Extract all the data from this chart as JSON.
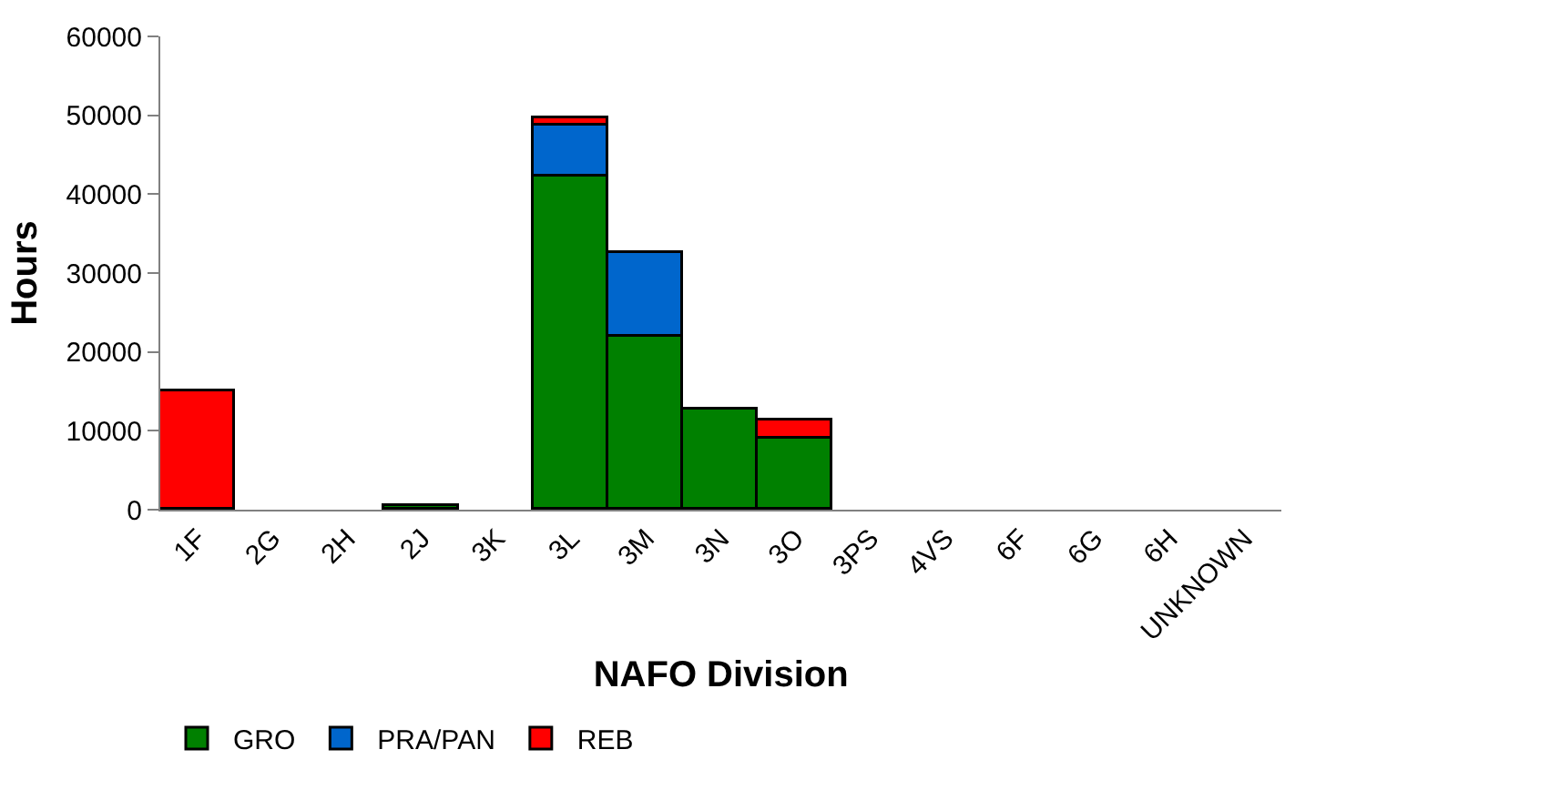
{
  "chart_data": {
    "type": "bar",
    "stacked": true,
    "xlabel": "NAFO Division",
    "ylabel": "Hours",
    "categories": [
      "1F",
      "2G",
      "2H",
      "2J",
      "3K",
      "3L",
      "3M",
      "3N",
      "3O",
      "3PS",
      "4VS",
      "6F",
      "6G",
      "6H",
      "UNKNOWN"
    ],
    "series": [
      {
        "name": "GRO",
        "color": "#008000",
        "values": [
          null,
          null,
          null,
          400,
          null,
          42200,
          22000,
          12800,
          9000,
          null,
          null,
          null,
          null,
          null,
          null
        ]
      },
      {
        "name": "PRA/PAN",
        "color": "#0066cc",
        "values": [
          null,
          null,
          null,
          null,
          null,
          6500,
          10600,
          null,
          null,
          null,
          null,
          null,
          null,
          null,
          null
        ]
      },
      {
        "name": "REB",
        "color": "#ff0000",
        "values": [
          15000,
          null,
          null,
          null,
          null,
          1000,
          null,
          null,
          2300,
          null,
          null,
          null,
          null,
          null,
          null
        ]
      }
    ],
    "ylim": [
      0,
      60000
    ],
    "yticks": [
      0,
      10000,
      20000,
      30000,
      40000,
      50000,
      60000
    ],
    "grid": false,
    "legend": "bottom left"
  }
}
